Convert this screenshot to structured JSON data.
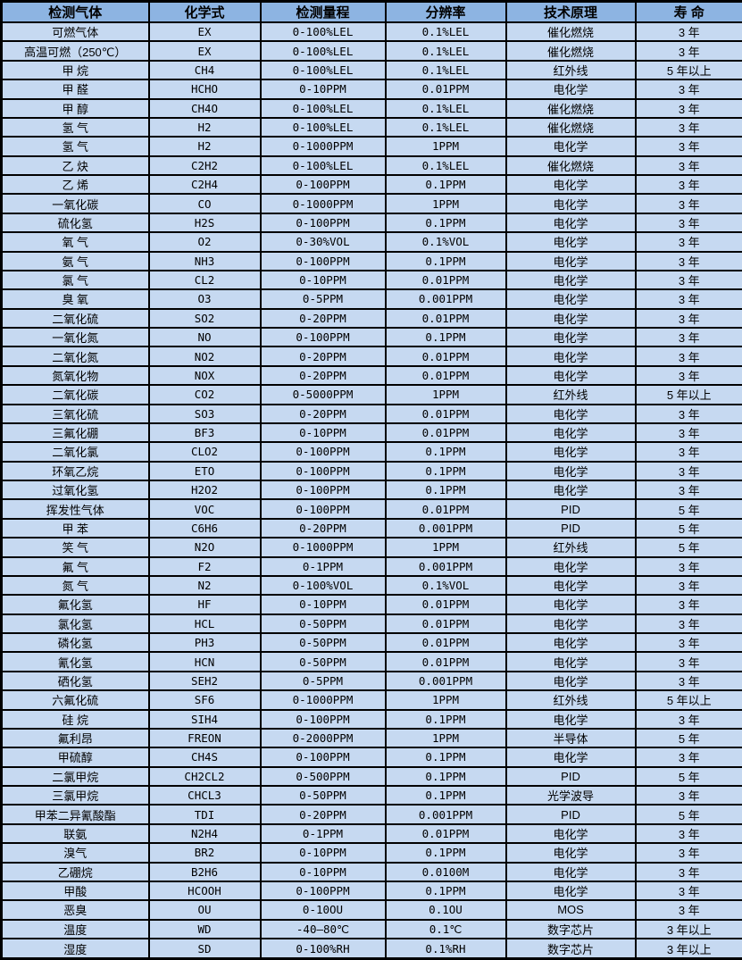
{
  "colors": {
    "header_bg": "#8db4e2",
    "row_bg": "#c6d9f1",
    "border": "#000000",
    "text": "#000000"
  },
  "table": {
    "columns": [
      "检测气体",
      "化学式",
      "检测量程",
      "分辨率",
      "技术原理",
      "寿 命"
    ],
    "rows": [
      [
        "可燃气体",
        "EX",
        "0-100%LEL",
        "0.1%LEL",
        "催化燃烧",
        "3 年"
      ],
      [
        "高温可燃（250℃）",
        "EX",
        "0-100%LEL",
        "0.1%LEL",
        "催化燃烧",
        "3 年"
      ],
      [
        "甲 烷",
        "CH4",
        "0-100%LEL",
        "0.1%LEL",
        "红外线",
        "5 年以上"
      ],
      [
        "甲 醛",
        "HCHO",
        "0-10PPM",
        "0.01PPM",
        "电化学",
        "3 年"
      ],
      [
        "甲 醇",
        "CH4O",
        "0-100%LEL",
        "0.1%LEL",
        "催化燃烧",
        "3 年"
      ],
      [
        "氢 气",
        "H2",
        "0-100%LEL",
        "0.1%LEL",
        "催化燃烧",
        "3 年"
      ],
      [
        "氢 气",
        "H2",
        "0-1000PPM",
        "1PPM",
        "电化学",
        "3 年"
      ],
      [
        "乙 炔",
        "C2H2",
        "0-100%LEL",
        "0.1%LEL",
        "催化燃烧",
        "3 年"
      ],
      [
        "乙 烯",
        "C2H4",
        "0-100PPM",
        "0.1PPM",
        "电化学",
        "3 年"
      ],
      [
        "一氧化碳",
        "CO",
        "0-1000PPM",
        "1PPM",
        "电化学",
        "3 年"
      ],
      [
        "硫化氢",
        "H2S",
        "0-100PPM",
        "0.1PPM",
        "电化学",
        "3 年"
      ],
      [
        "氧 气",
        "O2",
        "0-30%VOL",
        "0.1%VOL",
        "电化学",
        "3 年"
      ],
      [
        "氨 气",
        "NH3",
        "0-100PPM",
        "0.1PPM",
        "电化学",
        "3 年"
      ],
      [
        "氯 气",
        "CL2",
        "0-10PPM",
        "0.01PPM",
        "电化学",
        "3 年"
      ],
      [
        "臭 氧",
        "O3",
        "0-5PPM",
        "0.001PPM",
        "电化学",
        "3 年"
      ],
      [
        "二氧化硫",
        "SO2",
        "0-20PPM",
        "0.01PPM",
        "电化学",
        "3 年"
      ],
      [
        "一氧化氮",
        "NO",
        "0-100PPM",
        "0.1PPM",
        "电化学",
        "3 年"
      ],
      [
        "二氧化氮",
        "NO2",
        "0-20PPM",
        "0.01PPM",
        "电化学",
        "3 年"
      ],
      [
        "氮氧化物",
        "NOX",
        "0-20PPM",
        "0.01PPM",
        "电化学",
        "3 年"
      ],
      [
        "二氧化碳",
        "CO2",
        "0-5000PPM",
        "1PPM",
        "红外线",
        "5 年以上"
      ],
      [
        "三氧化硫",
        "SO3",
        "0-20PPM",
        "0.01PPM",
        "电化学",
        "3 年"
      ],
      [
        "三氟化硼",
        "BF3",
        "0-10PPM",
        "0.01PPM",
        "电化学",
        "3 年"
      ],
      [
        "二氧化氯",
        "CLO2",
        "0-100PPM",
        "0.1PPM",
        "电化学",
        "3 年"
      ],
      [
        "环氧乙烷",
        "ETO",
        "0-100PPM",
        "0.1PPM",
        "电化学",
        "3 年"
      ],
      [
        "过氧化氢",
        "H2O2",
        "0-100PPM",
        "0.1PPM",
        "电化学",
        "3 年"
      ],
      [
        "挥发性气体",
        "VOC",
        "0-100PPM",
        "0.01PPM",
        "PID",
        "5 年"
      ],
      [
        "甲 苯",
        "C6H6",
        "0-20PPM",
        "0.001PPM",
        "PID",
        "5 年"
      ],
      [
        "笑 气",
        "N2O",
        "0-1000PPM",
        "1PPM",
        "红外线",
        "5 年"
      ],
      [
        "氟 气",
        "F2",
        "0-1PPM",
        "0.001PPM",
        "电化学",
        "3 年"
      ],
      [
        "氮 气",
        "N2",
        "0-100%VOL",
        "0.1%VOL",
        "电化学",
        "3 年"
      ],
      [
        "氟化氢",
        "HF",
        "0-10PPM",
        "0.01PPM",
        "电化学",
        "3 年"
      ],
      [
        "氯化氢",
        "HCL",
        "0-50PPM",
        "0.01PPM",
        "电化学",
        "3 年"
      ],
      [
        "磷化氢",
        "PH3",
        "0-50PPM",
        "0.01PPM",
        "电化学",
        "3 年"
      ],
      [
        "氰化氢",
        "HCN",
        "0-50PPM",
        "0.01PPM",
        "电化学",
        "3 年"
      ],
      [
        "硒化氢",
        "SEH2",
        "0-5PPM",
        "0.001PPM",
        "电化学",
        "3 年"
      ],
      [
        "六氟化硫",
        "SF6",
        "0-1000PPM",
        "1PPM",
        "红外线",
        "5 年以上"
      ],
      [
        "硅 烷",
        "SIH4",
        "0-100PPM",
        "0.1PPM",
        "电化学",
        "3 年"
      ],
      [
        "氟利昂",
        "FREON",
        "0-2000PPM",
        "1PPM",
        "半导体",
        "5 年"
      ],
      [
        "甲硫醇",
        "CH4S",
        "0-100PPM",
        "0.1PPM",
        "电化学",
        "3 年"
      ],
      [
        "二氯甲烷",
        "CH2CL2",
        "0-500PPM",
        "0.1PPM",
        "PID",
        "5 年"
      ],
      [
        "三氯甲烷",
        "CHCL3",
        "0-50PPM",
        "0.1PPM",
        "光学波导",
        "3 年"
      ],
      [
        "甲苯二异氰酸酯",
        "TDI",
        "0-20PPM",
        "0.001PPM",
        "PID",
        "5 年"
      ],
      [
        "联氨",
        "N2H4",
        "0-1PPM",
        "0.01PPM",
        "电化学",
        "3 年"
      ],
      [
        "溴气",
        "BR2",
        "0-10PPM",
        "0.1PPM",
        "电化学",
        "3 年"
      ],
      [
        "乙硼烷",
        "B2H6",
        "0-10PPM",
        "0.0100M",
        "电化学",
        "3 年"
      ],
      [
        "甲酸",
        "HCOOH",
        "0-100PPM",
        "0.1PPM",
        "电化学",
        "3 年"
      ],
      [
        "恶臭",
        "OU",
        "0-10OU",
        "0.1OU",
        "MOS",
        "3 年"
      ],
      [
        "温度",
        "WD",
        "-40—80℃",
        "0.1℃",
        "数字芯片",
        "3 年以上"
      ],
      [
        "湿度",
        "SD",
        "0-100%RH",
        "0.1%RH",
        "数字芯片",
        "3 年以上"
      ]
    ]
  }
}
